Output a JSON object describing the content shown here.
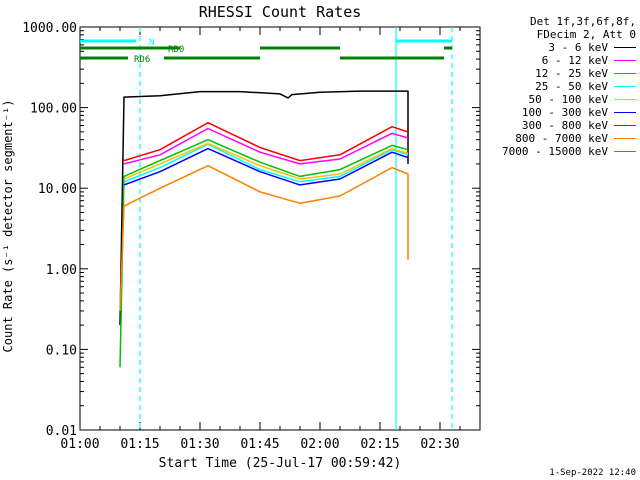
{
  "chart_data": {
    "type": "line",
    "title": "RHESSI Count Rates",
    "xlabel": "Start Time (25-Jul-17 00:59:42)",
    "ylabel": "Count Rate (s⁻¹ detector segment⁻¹)",
    "yscale": "log",
    "ylim": [
      0.01,
      1000
    ],
    "xlim": [
      "01:00",
      "02:40"
    ],
    "x_ticks": [
      "01:00",
      "01:15",
      "01:30",
      "01:45",
      "02:00",
      "02:15",
      "02:30"
    ],
    "y_ticks": [
      "0.01",
      "0.10",
      "1.00",
      "10.00",
      "100.00",
      "1000.00"
    ],
    "legend_header": [
      "Det 1f,3f,6f,8f,",
      "FDecim 2, Att 0"
    ],
    "legend_position": "right",
    "series": [
      {
        "name": "3 - 6 keV",
        "color": "#000000",
        "x": [
          "01:10",
          "01:11",
          "01:20",
          "01:30",
          "01:40",
          "01:50",
          "01:52",
          "01:53",
          "02:00",
          "02:10",
          "02:20",
          "02:22",
          "02:22"
        ],
        "y": [
          0.2,
          135,
          140,
          158,
          158,
          148,
          132,
          145,
          155,
          160,
          160,
          160,
          20
        ]
      },
      {
        "name": "6 - 12 keV",
        "color": "#ff00ff",
        "x": [
          "01:11",
          "01:20",
          "01:32",
          "01:45",
          "01:55",
          "02:05",
          "02:18",
          "02:22"
        ],
        "y": [
          20,
          26,
          55,
          28,
          20,
          23,
          48,
          42
        ]
      },
      {
        "name": "12 - 25 keV",
        "color": "#00c000",
        "x": [
          "01:10",
          "01:11",
          "01:20",
          "01:32",
          "01:45",
          "01:55",
          "02:05",
          "02:18",
          "02:22"
        ],
        "y": [
          0.06,
          14,
          22,
          40,
          21,
          14,
          17,
          34,
          30
        ]
      },
      {
        "name": "25 - 50 keV",
        "color": "#00ffff",
        "x": [
          "01:11",
          "01:20",
          "01:32",
          "01:45",
          "01:55",
          "02:05",
          "02:18",
          "02:22"
        ],
        "y": [
          12,
          18,
          35,
          17,
          12,
          14,
          30,
          26
        ]
      },
      {
        "name": "50 - 100 keV",
        "color": "#ffc000",
        "x": [
          "01:11",
          "01:20",
          "01:32",
          "01:45",
          "01:55",
          "02:05",
          "02:18",
          "02:22"
        ],
        "y": [
          13,
          20,
          36,
          19,
          13,
          15,
          31,
          27
        ]
      },
      {
        "name": "100 - 300 keV",
        "color": "#0000ff",
        "x": [
          "01:11",
          "01:20",
          "01:32",
          "01:45",
          "01:55",
          "02:05",
          "02:18",
          "02:22"
        ],
        "y": [
          11,
          16,
          31,
          16,
          11,
          13,
          28,
          24
        ]
      },
      {
        "name": "300 - 800 keV",
        "color": "#ff0000",
        "x": [
          "01:11",
          "01:20",
          "01:32",
          "01:45",
          "01:55",
          "02:05",
          "02:18",
          "02:22"
        ],
        "y": [
          22,
          30,
          65,
          32,
          22,
          26,
          58,
          50
        ]
      },
      {
        "name": "800 - 7000 keV",
        "color": "#ff8000",
        "x": [
          "01:10",
          "01:11",
          "01:20",
          "01:32",
          "01:45",
          "01:55",
          "02:05",
          "02:18",
          "02:22",
          "02:22"
        ],
        "y": [
          0.3,
          6,
          10,
          19,
          9,
          6.5,
          8,
          18,
          15,
          1.3
        ]
      },
      {
        "name": "7000 - 15000 keV",
        "color": "#808000",
        "x": [],
        "y": []
      }
    ],
    "vertical_markers": [
      {
        "x": "01:15",
        "style": "dashed",
        "color": "#00ffff"
      },
      {
        "x": "02:19",
        "style": "solid",
        "color": "#00ffff"
      },
      {
        "x": "02:33",
        "style": "dashed",
        "color": "#00ffff"
      }
    ],
    "flag_bars": [
      {
        "label": "N",
        "color": "#00ffff",
        "segments": [
          [
            "01:00",
            "01:14"
          ],
          [
            "02:19",
            "02:33"
          ]
        ]
      },
      {
        "label": "RD0",
        "color": "#008000",
        "segments": [
          [
            "01:00",
            "01:25"
          ],
          [
            "01:45",
            "02:05"
          ],
          [
            "02:31",
            "02:33"
          ]
        ]
      },
      {
        "label": "RD6",
        "color": "#008000",
        "segments": [
          [
            "01:00",
            "01:12"
          ],
          [
            "01:21",
            "01:45"
          ],
          [
            "02:05",
            "02:31"
          ]
        ]
      }
    ]
  },
  "footer": {
    "date": "1-Sep-2022 12:40"
  }
}
